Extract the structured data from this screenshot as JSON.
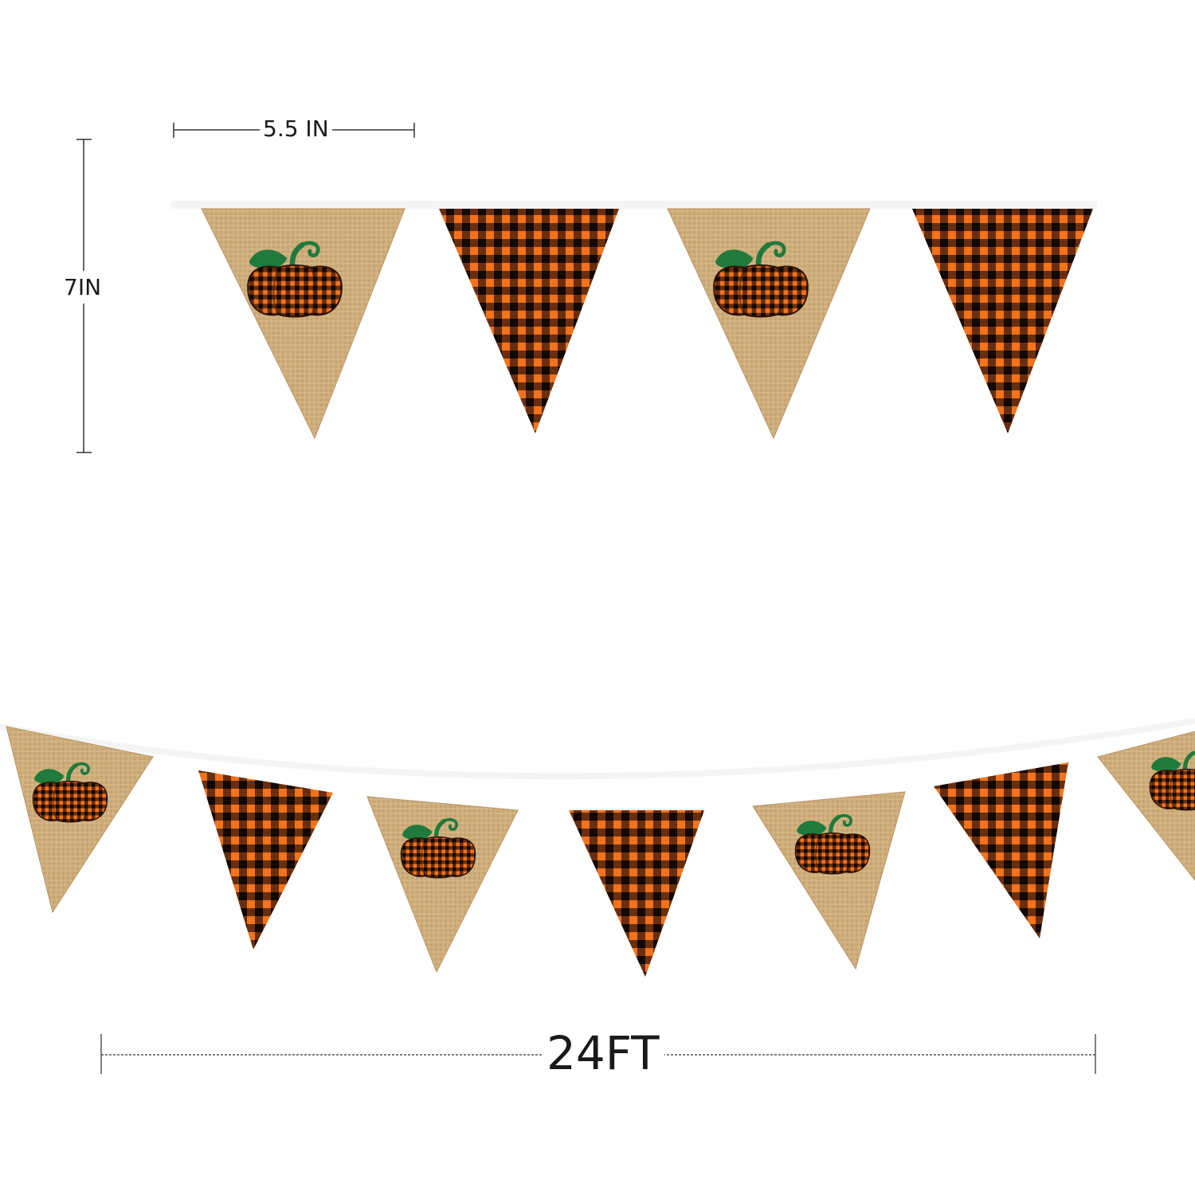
{
  "dimensions": {
    "width_label": "5.5 IN",
    "height_label": "7IN",
    "length_label": "24FT"
  },
  "banner": {
    "pattern": [
      "burlap-pumpkin",
      "buffalo-plaid"
    ],
    "colors": {
      "burlap": "#cfae7c",
      "burlap_dark": "#b89463",
      "plaid_orange": "#f2731c",
      "plaid_black": "#1a0c08",
      "leaf_green": "#1f7a3c",
      "string": "#f4f4f4"
    }
  }
}
